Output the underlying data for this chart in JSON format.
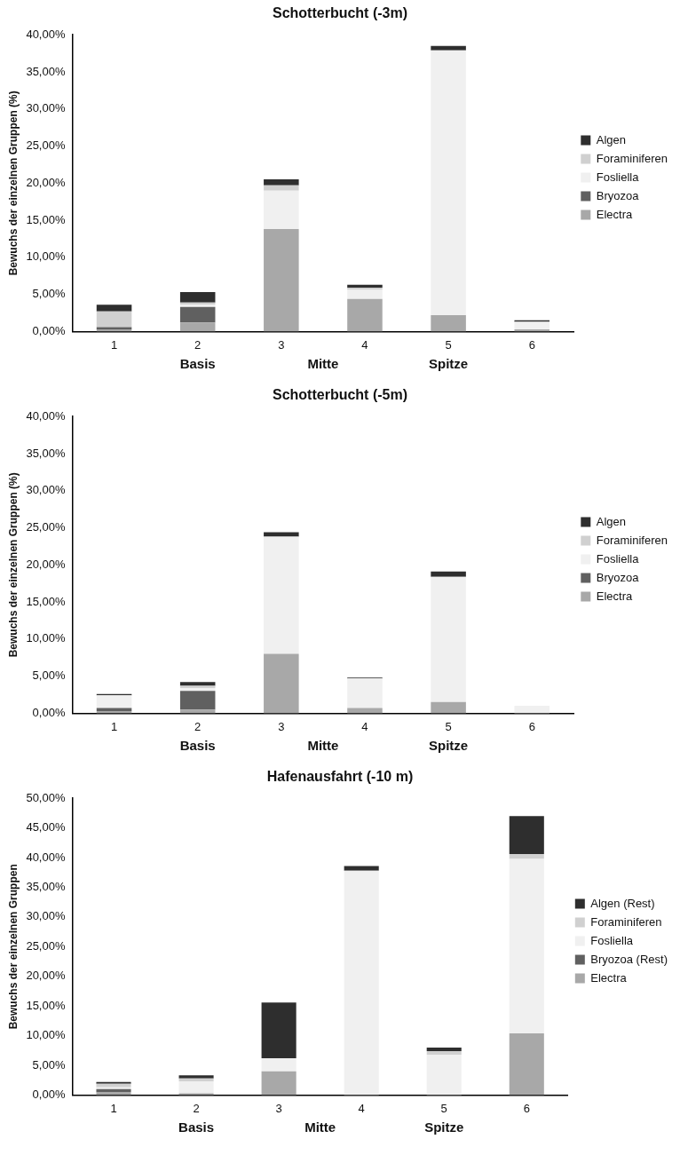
{
  "chart_data": [
    {
      "type": "bar",
      "title": "Schotterbucht (-3m)",
      "ylabel": "Bewuchs der einzelnen Gruppen (%)",
      "categories": [
        "1",
        "2",
        "3",
        "4",
        "5",
        "6"
      ],
      "stacked": true,
      "legend": "right",
      "ylim": [
        0,
        40
      ],
      "yticks": [
        {
          "value": 0,
          "label": "0,00%"
        },
        {
          "value": 5,
          "label": "5,00%"
        },
        {
          "value": 10,
          "label": "10,00%"
        },
        {
          "value": 15,
          "label": "15,00%"
        },
        {
          "value": 20,
          "label": "20,00%"
        },
        {
          "value": 25,
          "label": "25,00%"
        },
        {
          "value": 30,
          "label": "30,00%"
        },
        {
          "value": 35,
          "label": "35,00%"
        },
        {
          "value": 40,
          "label": "40,00%"
        }
      ],
      "series": [
        {
          "name": "Electra",
          "color": "#a8a8a8",
          "values": [
            0.3,
            1.2,
            13.8,
            4.4,
            2.2,
            0.3
          ]
        },
        {
          "name": "Bryozoa",
          "color": "#606060",
          "values": [
            0.3,
            2.1,
            0,
            0,
            0,
            0
          ]
        },
        {
          "name": "Fosliella",
          "color": "#f0f0f0",
          "values": [
            0,
            0.3,
            5.2,
            1.2,
            35.7,
            1.0
          ]
        },
        {
          "name": "Foraminiferen",
          "color": "#d0d0d0",
          "values": [
            2.1,
            0.3,
            0.7,
            0.3,
            0,
            0
          ]
        },
        {
          "name": "Algen",
          "color": "#2e2e2e",
          "values": [
            0.9,
            1.4,
            0.8,
            0.4,
            0.6,
            0.2
          ]
        }
      ],
      "annotations": [
        "Basis",
        "Mitte",
        "Spitze"
      ]
    },
    {
      "type": "bar",
      "title": "Schotterbucht (-5m)",
      "ylabel": "Bewuchs der einzelnen Gruppen (%)",
      "categories": [
        "1",
        "2",
        "3",
        "4",
        "5",
        "6"
      ],
      "stacked": true,
      "legend": "right",
      "ylim": [
        0,
        40
      ],
      "yticks": [
        {
          "value": 0,
          "label": "0,00%"
        },
        {
          "value": 5,
          "label": "5,00%"
        },
        {
          "value": 10,
          "label": "10,00%"
        },
        {
          "value": 15,
          "label": "15,00%"
        },
        {
          "value": 20,
          "label": "20,00%"
        },
        {
          "value": 25,
          "label": "25,00%"
        },
        {
          "value": 30,
          "label": "30,00%"
        },
        {
          "value": 35,
          "label": "35,00%"
        },
        {
          "value": 40,
          "label": "40,00%"
        }
      ],
      "series": [
        {
          "name": "Electra",
          "color": "#a8a8a8",
          "values": [
            0.3,
            0.5,
            8.0,
            0.7,
            1.5,
            0
          ]
        },
        {
          "name": "Bryozoa",
          "color": "#606060",
          "values": [
            0.4,
            2.5,
            0,
            0,
            0,
            0
          ]
        },
        {
          "name": "Fosliella",
          "color": "#f0f0f0",
          "values": [
            1.7,
            0.4,
            15.8,
            4.0,
            16.9,
            1.0
          ]
        },
        {
          "name": "Foraminiferen",
          "color": "#d0d0d0",
          "values": [
            0,
            0.3,
            0,
            0,
            0,
            0
          ]
        },
        {
          "name": "Algen",
          "color": "#2e2e2e",
          "values": [
            0.2,
            0.5,
            0.6,
            0.1,
            0.7,
            0
          ]
        }
      ],
      "annotations": [
        "Basis",
        "Mitte",
        "Spitze"
      ]
    },
    {
      "type": "bar",
      "title": "Hafenausfahrt (-10 m)",
      "ylabel": "Bewuchs der einzelnen Gruppen",
      "categories": [
        "1",
        "2",
        "3",
        "4",
        "5",
        "6"
      ],
      "stacked": true,
      "legend": "right",
      "ylim": [
        0,
        50
      ],
      "yticks": [
        {
          "value": 0,
          "label": "0,00%"
        },
        {
          "value": 5,
          "label": "5,00%"
        },
        {
          "value": 10,
          "label": "10,00%"
        },
        {
          "value": 15,
          "label": "15,00%"
        },
        {
          "value": 20,
          "label": "20,00%"
        },
        {
          "value": 25,
          "label": "25,00%"
        },
        {
          "value": 30,
          "label": "30,00%"
        },
        {
          "value": 35,
          "label": "35,00%"
        },
        {
          "value": 40,
          "label": "40,00%"
        },
        {
          "value": 45,
          "label": "45,00%"
        },
        {
          "value": 50,
          "label": "50,00%"
        }
      ],
      "series": [
        {
          "name": "Electra",
          "color": "#a8a8a8",
          "values": [
            0.5,
            0.3,
            4.0,
            0,
            0,
            10.4
          ]
        },
        {
          "name": "Bryozoa (Rest)",
          "color": "#606060",
          "values": [
            0.5,
            0,
            0,
            0,
            0,
            0
          ]
        },
        {
          "name": "Fosliella",
          "color": "#f0f0f0",
          "values": [
            0.3,
            2.0,
            2.2,
            37.8,
            6.8,
            29.4
          ]
        },
        {
          "name": "Foraminiferen",
          "color": "#d0d0d0",
          "values": [
            0.6,
            0.5,
            0,
            0,
            0.6,
            0.8
          ]
        },
        {
          "name": "Algen (Rest)",
          "color": "#2e2e2e",
          "values": [
            0.3,
            0.5,
            9.4,
            0.8,
            0.6,
            6.4
          ]
        }
      ],
      "annotations": [
        "Basis",
        "Mitte",
        "Spitze"
      ]
    }
  ]
}
